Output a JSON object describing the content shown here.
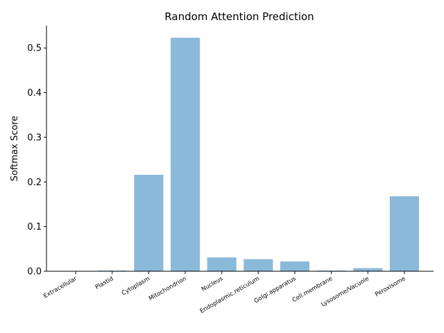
{
  "chart_data": {
    "type": "bar",
    "title": "Random Attention Prediction",
    "xlabel": "",
    "ylabel": "Softmax Score",
    "categories": [
      "Extracellular",
      "Plastid",
      "Cytoplasm",
      "Mitochondrion",
      "Nucleus",
      "Endoplasmic.reticulum",
      "Golgi.apparatus",
      "Cell.membrane",
      "Lysosome/Vacuole",
      "Peroxisome"
    ],
    "values": [
      0.0003,
      0.0015,
      0.216,
      0.523,
      0.031,
      0.027,
      0.022,
      0.0015,
      0.007,
      0.168
    ],
    "ylim": [
      0,
      0.55
    ],
    "yticks": [
      0.0,
      0.1,
      0.2,
      0.3,
      0.4,
      0.5
    ],
    "ytick_labels": [
      "0.0",
      "0.1",
      "0.2",
      "0.3",
      "0.4",
      "0.5"
    ],
    "grid": false,
    "bar_color": "#8bb9da"
  }
}
